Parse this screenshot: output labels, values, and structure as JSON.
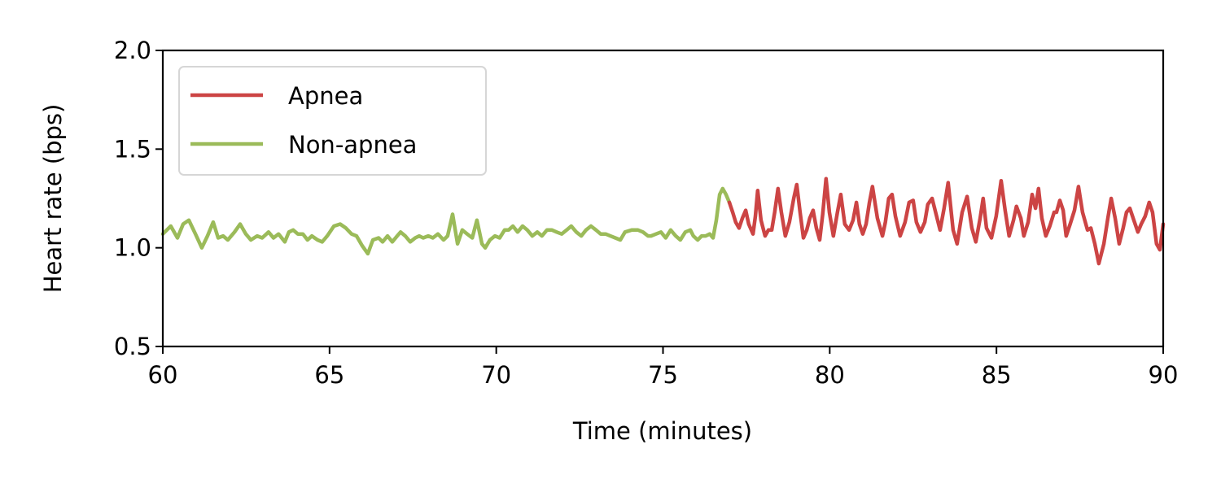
{
  "chart_data": {
    "type": "line",
    "title": "",
    "xlabel": "Time (minutes)",
    "ylabel": "Heart rate (bps)",
    "xlim": [
      60,
      90
    ],
    "ylim": [
      0.5,
      2.0
    ],
    "xticks": [
      60,
      65,
      70,
      75,
      80,
      85,
      90
    ],
    "xtick_labels": [
      "60",
      "65",
      "70",
      "75",
      "80",
      "85",
      "90"
    ],
    "yticks": [
      0.5,
      1.0,
      1.5,
      2.0
    ],
    "ytick_labels": [
      "0.5",
      "1.0",
      "1.5",
      "2.0"
    ],
    "grid": false,
    "legend_position": "upper left",
    "legend": [
      {
        "label": "Apnea",
        "color": "#cc4444"
      },
      {
        "label": "Non-apnea",
        "color": "#9bbb59"
      }
    ],
    "series": [
      {
        "name": "Non-apnea",
        "color": "#9bbb59",
        "points": [
          [
            60.0,
            1.07
          ],
          [
            60.24,
            1.11
          ],
          [
            60.44,
            1.05
          ],
          [
            60.61,
            1.12
          ],
          [
            60.78,
            1.14
          ],
          [
            60.98,
            1.07
          ],
          [
            61.17,
            1.0
          ],
          [
            61.34,
            1.06
          ],
          [
            61.51,
            1.13
          ],
          [
            61.66,
            1.05
          ],
          [
            61.81,
            1.06
          ],
          [
            61.95,
            1.04
          ],
          [
            62.15,
            1.08
          ],
          [
            62.32,
            1.12
          ],
          [
            62.49,
            1.07
          ],
          [
            62.64,
            1.04
          ],
          [
            62.83,
            1.06
          ],
          [
            62.98,
            1.05
          ],
          [
            63.17,
            1.08
          ],
          [
            63.32,
            1.05
          ],
          [
            63.47,
            1.07
          ],
          [
            63.66,
            1.03
          ],
          [
            63.78,
            1.08
          ],
          [
            63.91,
            1.09
          ],
          [
            64.05,
            1.07
          ],
          [
            64.2,
            1.07
          ],
          [
            64.34,
            1.04
          ],
          [
            64.47,
            1.06
          ],
          [
            64.64,
            1.04
          ],
          [
            64.78,
            1.03
          ],
          [
            64.93,
            1.06
          ],
          [
            65.13,
            1.11
          ],
          [
            65.32,
            1.12
          ],
          [
            65.49,
            1.1
          ],
          [
            65.66,
            1.07
          ],
          [
            65.81,
            1.06
          ],
          [
            65.98,
            1.01
          ],
          [
            66.15,
            0.97
          ],
          [
            66.3,
            1.04
          ],
          [
            66.47,
            1.05
          ],
          [
            66.59,
            1.03
          ],
          [
            66.74,
            1.06
          ],
          [
            66.88,
            1.03
          ],
          [
            67.03,
            1.06
          ],
          [
            67.13,
            1.08
          ],
          [
            67.27,
            1.06
          ],
          [
            67.42,
            1.03
          ],
          [
            67.57,
            1.05
          ],
          [
            67.69,
            1.06
          ],
          [
            67.81,
            1.05
          ],
          [
            67.96,
            1.06
          ],
          [
            68.1,
            1.05
          ],
          [
            68.25,
            1.07
          ],
          [
            68.42,
            1.04
          ],
          [
            68.54,
            1.06
          ],
          [
            68.69,
            1.17
          ],
          [
            68.84,
            1.02
          ],
          [
            68.98,
            1.09
          ],
          [
            69.13,
            1.07
          ],
          [
            69.28,
            1.05
          ],
          [
            69.42,
            1.14
          ],
          [
            69.57,
            1.02
          ],
          [
            69.67,
            1.0
          ],
          [
            69.81,
            1.04
          ],
          [
            69.96,
            1.06
          ],
          [
            70.1,
            1.05
          ],
          [
            70.25,
            1.09
          ],
          [
            70.37,
            1.09
          ],
          [
            70.5,
            1.11
          ],
          [
            70.64,
            1.08
          ],
          [
            70.79,
            1.11
          ],
          [
            70.93,
            1.09
          ],
          [
            71.08,
            1.06
          ],
          [
            71.23,
            1.08
          ],
          [
            71.37,
            1.06
          ],
          [
            71.52,
            1.09
          ],
          [
            71.67,
            1.09
          ],
          [
            71.81,
            1.08
          ],
          [
            71.96,
            1.07
          ],
          [
            72.11,
            1.09
          ],
          [
            72.25,
            1.11
          ],
          [
            72.4,
            1.08
          ],
          [
            72.55,
            1.06
          ],
          [
            72.69,
            1.09
          ],
          [
            72.84,
            1.11
          ],
          [
            72.99,
            1.09
          ],
          [
            73.13,
            1.07
          ],
          [
            73.28,
            1.07
          ],
          [
            73.42,
            1.06
          ],
          [
            73.57,
            1.05
          ],
          [
            73.72,
            1.04
          ],
          [
            73.86,
            1.08
          ],
          [
            74.06,
            1.09
          ],
          [
            74.25,
            1.09
          ],
          [
            74.4,
            1.08
          ],
          [
            74.55,
            1.06
          ],
          [
            74.64,
            1.06
          ],
          [
            74.79,
            1.07
          ],
          [
            74.94,
            1.08
          ],
          [
            75.08,
            1.05
          ],
          [
            75.23,
            1.09
          ],
          [
            75.38,
            1.06
          ],
          [
            75.52,
            1.04
          ],
          [
            75.67,
            1.08
          ],
          [
            75.82,
            1.09
          ],
          [
            75.91,
            1.06
          ],
          [
            76.04,
            1.04
          ],
          [
            76.16,
            1.06
          ],
          [
            76.28,
            1.06
          ],
          [
            76.4,
            1.07
          ],
          [
            76.5,
            1.05
          ],
          [
            76.6,
            1.14
          ],
          [
            76.7,
            1.27
          ],
          [
            76.79,
            1.3
          ],
          [
            76.89,
            1.27
          ],
          [
            76.99,
            1.23
          ]
        ]
      },
      {
        "name": "Apnea",
        "color": "#cc4444",
        "points": [
          [
            76.99,
            1.23
          ],
          [
            77.09,
            1.18
          ],
          [
            77.18,
            1.13
          ],
          [
            77.28,
            1.1
          ],
          [
            77.38,
            1.15
          ],
          [
            77.48,
            1.19
          ],
          [
            77.57,
            1.12
          ],
          [
            77.7,
            1.07
          ],
          [
            77.77,
            1.16
          ],
          [
            77.84,
            1.29
          ],
          [
            77.94,
            1.14
          ],
          [
            78.06,
            1.06
          ],
          [
            78.16,
            1.09
          ],
          [
            78.26,
            1.09
          ],
          [
            78.35,
            1.18
          ],
          [
            78.45,
            1.3
          ],
          [
            78.55,
            1.18
          ],
          [
            78.67,
            1.06
          ],
          [
            78.79,
            1.13
          ],
          [
            78.92,
            1.25
          ],
          [
            79.01,
            1.32
          ],
          [
            79.11,
            1.18
          ],
          [
            79.21,
            1.05
          ],
          [
            79.31,
            1.09
          ],
          [
            79.4,
            1.15
          ],
          [
            79.5,
            1.19
          ],
          [
            79.6,
            1.1
          ],
          [
            79.7,
            1.04
          ],
          [
            79.79,
            1.17
          ],
          [
            79.89,
            1.35
          ],
          [
            79.99,
            1.18
          ],
          [
            80.11,
            1.06
          ],
          [
            80.23,
            1.18
          ],
          [
            80.33,
            1.27
          ],
          [
            80.45,
            1.12
          ],
          [
            80.58,
            1.09
          ],
          [
            80.7,
            1.14
          ],
          [
            80.8,
            1.23
          ],
          [
            80.89,
            1.12
          ],
          [
            80.99,
            1.07
          ],
          [
            81.09,
            1.12
          ],
          [
            81.19,
            1.23
          ],
          [
            81.28,
            1.31
          ],
          [
            81.43,
            1.15
          ],
          [
            81.58,
            1.06
          ],
          [
            81.67,
            1.13
          ],
          [
            81.77,
            1.25
          ],
          [
            81.87,
            1.27
          ],
          [
            81.97,
            1.16
          ],
          [
            82.11,
            1.06
          ],
          [
            82.26,
            1.13
          ],
          [
            82.38,
            1.23
          ],
          [
            82.5,
            1.24
          ],
          [
            82.6,
            1.13
          ],
          [
            82.72,
            1.08
          ],
          [
            82.85,
            1.13
          ],
          [
            82.94,
            1.22
          ],
          [
            83.07,
            1.25
          ],
          [
            83.19,
            1.17
          ],
          [
            83.31,
            1.09
          ],
          [
            83.43,
            1.2
          ],
          [
            83.55,
            1.33
          ],
          [
            83.7,
            1.09
          ],
          [
            83.82,
            1.02
          ],
          [
            83.97,
            1.18
          ],
          [
            84.12,
            1.26
          ],
          [
            84.26,
            1.1
          ],
          [
            84.38,
            1.03
          ],
          [
            84.51,
            1.15
          ],
          [
            84.6,
            1.25
          ],
          [
            84.7,
            1.1
          ],
          [
            84.85,
            1.05
          ],
          [
            84.99,
            1.16
          ],
          [
            85.14,
            1.34
          ],
          [
            85.26,
            1.19
          ],
          [
            85.38,
            1.06
          ],
          [
            85.51,
            1.14
          ],
          [
            85.6,
            1.21
          ],
          [
            85.73,
            1.15
          ],
          [
            85.82,
            1.06
          ],
          [
            85.95,
            1.13
          ],
          [
            86.07,
            1.27
          ],
          [
            86.17,
            1.2
          ],
          [
            86.26,
            1.3
          ],
          [
            86.36,
            1.15
          ],
          [
            86.48,
            1.06
          ],
          [
            86.6,
            1.11
          ],
          [
            86.73,
            1.18
          ],
          [
            86.8,
            1.18
          ],
          [
            86.9,
            1.24
          ],
          [
            87.0,
            1.19
          ],
          [
            87.09,
            1.06
          ],
          [
            87.21,
            1.12
          ],
          [
            87.34,
            1.19
          ],
          [
            87.46,
            1.31
          ],
          [
            87.58,
            1.18
          ],
          [
            87.73,
            1.09
          ],
          [
            87.83,
            1.1
          ],
          [
            87.95,
            1.02
          ],
          [
            88.07,
            0.92
          ],
          [
            88.22,
            1.02
          ],
          [
            88.34,
            1.15
          ],
          [
            88.44,
            1.25
          ],
          [
            88.56,
            1.15
          ],
          [
            88.68,
            1.02
          ],
          [
            88.8,
            1.1
          ],
          [
            88.9,
            1.18
          ],
          [
            89.0,
            1.2
          ],
          [
            89.12,
            1.14
          ],
          [
            89.24,
            1.08
          ],
          [
            89.34,
            1.12
          ],
          [
            89.46,
            1.16
          ],
          [
            89.58,
            1.23
          ],
          [
            89.68,
            1.18
          ],
          [
            89.8,
            1.02
          ],
          [
            89.9,
            0.99
          ],
          [
            90.0,
            1.12
          ]
        ]
      }
    ]
  }
}
